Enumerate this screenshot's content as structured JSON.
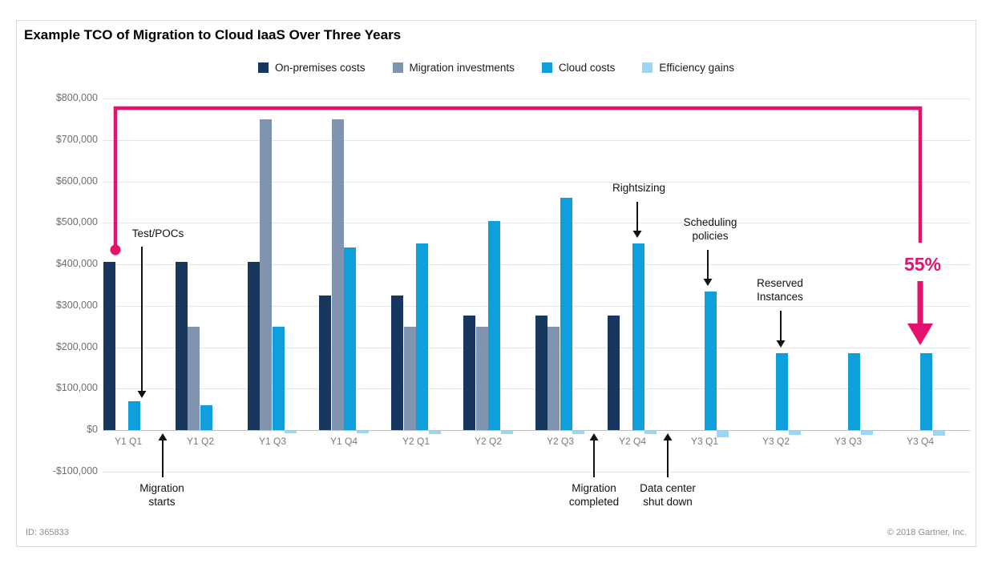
{
  "chart_data": {
    "type": "bar",
    "grouped": true,
    "title": "Example TCO of Migration to Cloud IaaS Over Three Years",
    "categories": [
      "Y1 Q1",
      "Y1 Q2",
      "Y1 Q3",
      "Y1 Q4",
      "Y2 Q1",
      "Y2 Q2",
      "Y2 Q3",
      "Y2 Q4",
      "Y3 Q1",
      "Y3 Q2",
      "Y3 Q3",
      "Y3 Q4"
    ],
    "series": [
      {
        "name": "On-premises costs",
        "color": "#17375E",
        "values": [
          405000,
          405000,
          405000,
          325000,
          325000,
          277000,
          277000,
          277000,
          null,
          null,
          null,
          null
        ]
      },
      {
        "name": "Migration investments",
        "color": "#8094AF",
        "values": [
          null,
          250000,
          750000,
          750000,
          250000,
          250000,
          250000,
          null,
          null,
          null,
          null,
          null
        ]
      },
      {
        "name": "Cloud costs",
        "color": "#0FA0DC",
        "values": [
          70000,
          60000,
          250000,
          440000,
          450000,
          505000,
          560000,
          450000,
          335000,
          185000,
          185000,
          185000
        ]
      },
      {
        "name": "Efficiency gains",
        "color": "#9AD7F5",
        "values": [
          null,
          null,
          -5000,
          -6000,
          -8000,
          -8000,
          -8000,
          -8000,
          -15000,
          -10000,
          -10000,
          -12000
        ]
      }
    ],
    "y_axis": {
      "min": -100000,
      "max": 800000,
      "tick_step": 100000,
      "ticks": [
        {
          "value": 800000,
          "label": "$800,000"
        },
        {
          "value": 700000,
          "label": "$700,000"
        },
        {
          "value": 600000,
          "label": "$600,000"
        },
        {
          "value": 500000,
          "label": "$500,000"
        },
        {
          "value": 400000,
          "label": "$400,000"
        },
        {
          "value": 300000,
          "label": "$300,000"
        },
        {
          "value": 200000,
          "label": "$200,000"
        },
        {
          "value": 100000,
          "label": "$100,000"
        },
        {
          "value": 0,
          "label": "$0"
        },
        {
          "value": -100000,
          "label": "-$100,000"
        }
      ]
    },
    "legend_position": "top",
    "grid": "horizontal",
    "annotations": [
      {
        "label": "Test/POCs",
        "target": "Y1 Q1 cloud costs bar",
        "arrow": "down"
      },
      {
        "label": "Migration\nstarts",
        "target": "x-axis after Y1 Q1",
        "arrow": "up"
      },
      {
        "label": "Rightsizing",
        "target": "Y2 Q4 cloud costs bar",
        "arrow": "down"
      },
      {
        "label": "Scheduling\npolicies",
        "target": "Y3 Q1 cloud costs bar",
        "arrow": "down"
      },
      {
        "label": "Reserved\nInstances",
        "target": "Y3 Q2 cloud costs bar",
        "arrow": "down"
      },
      {
        "label": "Migration\ncompleted",
        "target": "x-axis before Y2 Q4",
        "arrow": "up"
      },
      {
        "label": "Data center\nshut down",
        "target": "x-axis after Y2 Q4",
        "arrow": "up"
      }
    ],
    "highlight": {
      "label": "55%",
      "color": "#E5116C",
      "from": "Y1 Q1 on-premises costs bar top",
      "to": "Y3 Q4 cloud costs bar top",
      "meaning": "cost reduction from Y1 Q1 to Y3 Q4"
    }
  },
  "footer": {
    "id_label": "ID: 365833",
    "copyright": "© 2018 Gartner, Inc."
  }
}
